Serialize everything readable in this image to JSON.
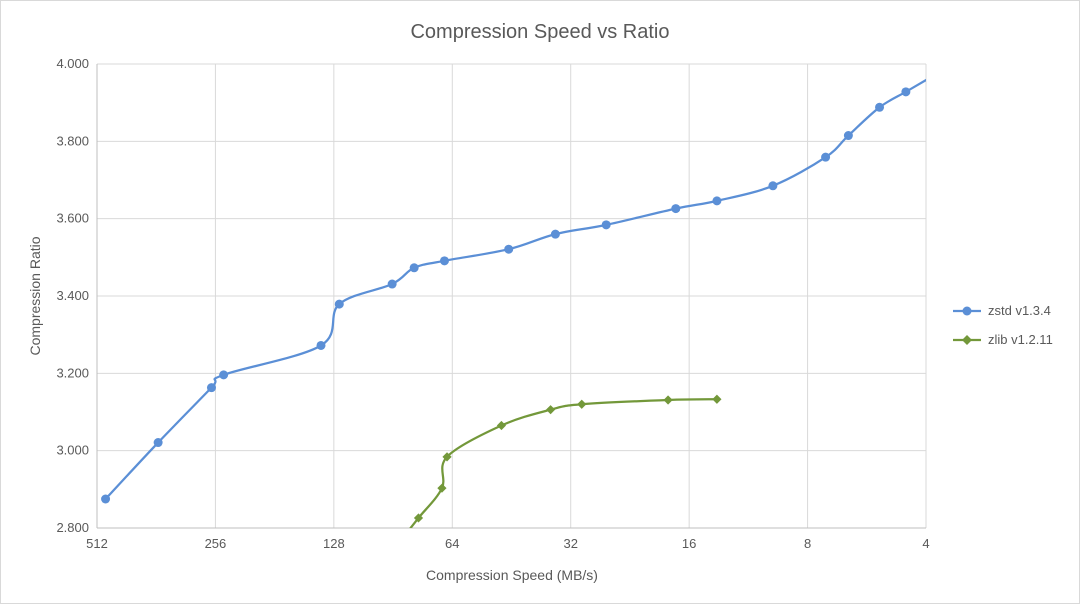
{
  "chart_data": {
    "type": "scatter",
    "title": "Compression Speed vs Ratio",
    "xlabel": "Compression Speed (MB/s)",
    "ylabel": "Compression Ratio",
    "x_scale": "log2",
    "x_reversed": true,
    "xlim": [
      4,
      512
    ],
    "ylim": [
      2.8,
      4.0
    ],
    "x_ticks": [
      "512",
      "256",
      "128",
      "64",
      "32",
      "16",
      "8",
      "4"
    ],
    "x_tick_values": [
      512,
      256,
      128,
      64,
      32,
      16,
      8,
      4
    ],
    "y_ticks": [
      "2.800",
      "3.000",
      "3.200",
      "3.400",
      "3.600",
      "3.800",
      "4.000"
    ],
    "y_tick_values": [
      2.8,
      3.0,
      3.2,
      3.4,
      3.6,
      3.8,
      4.0
    ],
    "grid": true,
    "legend_position": "right",
    "series": [
      {
        "name": "zstd v1.3.4",
        "color": "#5b8fd6",
        "marker": "circle",
        "extends_to_axis_edge": true,
        "x": [
          487,
          358,
          262,
          244,
          138,
          124,
          91,
          80,
          67,
          46,
          35,
          26,
          17.3,
          13.6,
          9.8,
          7.2,
          6.3,
          5.25,
          4.5
        ],
        "y": [
          2.875,
          3.021,
          3.163,
          3.196,
          3.272,
          3.379,
          3.431,
          3.473,
          3.491,
          3.521,
          3.56,
          3.584,
          3.626,
          3.646,
          3.685,
          3.759,
          3.815,
          3.888,
          3.928
        ]
      },
      {
        "name": "zlib v1.2.11",
        "color": "#73983a",
        "marker": "diamond",
        "x": [
          78,
          68,
          66,
          48,
          36,
          30,
          18.1,
          13.6
        ],
        "y": [
          2.826,
          2.903,
          2.984,
          3.065,
          3.106,
          3.12,
          3.131,
          3.133
        ]
      }
    ]
  }
}
